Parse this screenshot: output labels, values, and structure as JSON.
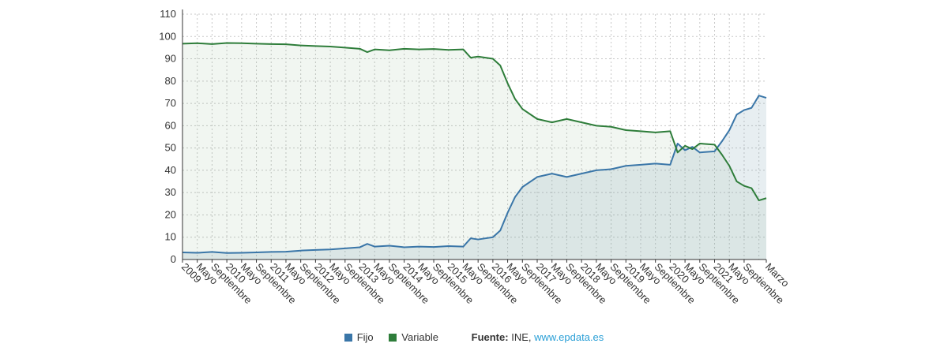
{
  "chart_data": {
    "type": "area",
    "y_ticks": [
      "0",
      "10",
      "20",
      "30",
      "40",
      "50",
      "60",
      "70",
      "80",
      "90",
      "100",
      "110"
    ],
    "ylim": [
      0,
      110
    ],
    "grid": true,
    "x_labels": [
      "2009",
      "Mayo",
      "Septiembre",
      "2010",
      "Mayo",
      "Septiembre",
      "2011",
      "Mayo",
      "Septiembre",
      "2012",
      "Mayo",
      "Septiembre",
      "2013",
      "Mayo",
      "Septiembre",
      "2014",
      "Mayo",
      "Septiembre",
      "2015",
      "Mayo",
      "Septiembre",
      "2016",
      "Mayo",
      "Septiembre",
      "2017",
      "Mayo",
      "Septiembre",
      "2018",
      "Mayo",
      "Septiembre",
      "2019",
      "Mayo",
      "Septiembre",
      "2020",
      "Mayo",
      "Septiembre",
      "2021",
      "Mayo",
      "Septiembre",
      "Marzo"
    ],
    "x_positions": [
      0,
      4,
      8,
      12,
      16,
      20,
      24,
      28,
      32,
      36,
      40,
      44,
      48,
      52,
      56,
      60,
      64,
      68,
      72,
      76,
      80,
      84,
      88,
      92,
      96,
      100,
      104,
      108,
      112,
      116,
      120,
      124,
      128,
      132,
      136,
      140,
      144,
      148,
      152,
      158
    ],
    "x_max": 158,
    "series": [
      {
        "name": "Fijo",
        "color": "#3a76a8",
        "values": [
          [
            0,
            3.2
          ],
          [
            4,
            3.0
          ],
          [
            8,
            3.4
          ],
          [
            12,
            2.9
          ],
          [
            16,
            3.0
          ],
          [
            20,
            3.2
          ],
          [
            24,
            3.4
          ],
          [
            28,
            3.5
          ],
          [
            32,
            4.0
          ],
          [
            36,
            4.3
          ],
          [
            40,
            4.5
          ],
          [
            44,
            5.0
          ],
          [
            48,
            5.5
          ],
          [
            50,
            7.0
          ],
          [
            52,
            5.8
          ],
          [
            56,
            6.2
          ],
          [
            60,
            5.5
          ],
          [
            64,
            5.8
          ],
          [
            68,
            5.6
          ],
          [
            72,
            6.0
          ],
          [
            76,
            5.8
          ],
          [
            78,
            9.5
          ],
          [
            80,
            9.0
          ],
          [
            84,
            10.0
          ],
          [
            86,
            13.0
          ],
          [
            88,
            21.0
          ],
          [
            90,
            28.0
          ],
          [
            92,
            32.5
          ],
          [
            96,
            37.0
          ],
          [
            100,
            38.5
          ],
          [
            104,
            37.0
          ],
          [
            108,
            38.5
          ],
          [
            112,
            40.0
          ],
          [
            116,
            40.5
          ],
          [
            120,
            42.0
          ],
          [
            124,
            42.5
          ],
          [
            128,
            43.0
          ],
          [
            132,
            42.5
          ],
          [
            134,
            52.0
          ],
          [
            136,
            49.0
          ],
          [
            138,
            50.5
          ],
          [
            140,
            48.0
          ],
          [
            144,
            48.5
          ],
          [
            146,
            53.0
          ],
          [
            148,
            58.0
          ],
          [
            150,
            65.0
          ],
          [
            152,
            67.0
          ],
          [
            154,
            68.0
          ],
          [
            156,
            73.5
          ],
          [
            158,
            72.5
          ]
        ]
      },
      {
        "name": "Variable",
        "color": "#2e7d3a",
        "values": [
          [
            0,
            96.8
          ],
          [
            4,
            97.0
          ],
          [
            8,
            96.6
          ],
          [
            12,
            97.1
          ],
          [
            16,
            97.0
          ],
          [
            20,
            96.8
          ],
          [
            24,
            96.6
          ],
          [
            28,
            96.5
          ],
          [
            32,
            96.0
          ],
          [
            36,
            95.7
          ],
          [
            40,
            95.5
          ],
          [
            44,
            95.0
          ],
          [
            48,
            94.5
          ],
          [
            50,
            93.0
          ],
          [
            52,
            94.2
          ],
          [
            56,
            93.8
          ],
          [
            60,
            94.5
          ],
          [
            64,
            94.2
          ],
          [
            68,
            94.4
          ],
          [
            72,
            94.0
          ],
          [
            76,
            94.2
          ],
          [
            78,
            90.5
          ],
          [
            80,
            91.0
          ],
          [
            84,
            90.0
          ],
          [
            86,
            87.0
          ],
          [
            88,
            79.0
          ],
          [
            90,
            72.0
          ],
          [
            92,
            67.5
          ],
          [
            96,
            63.0
          ],
          [
            100,
            61.5
          ],
          [
            104,
            63.0
          ],
          [
            108,
            61.5
          ],
          [
            112,
            60.0
          ],
          [
            116,
            59.5
          ],
          [
            120,
            58.0
          ],
          [
            124,
            57.5
          ],
          [
            128,
            57.0
          ],
          [
            132,
            57.5
          ],
          [
            134,
            48.0
          ],
          [
            136,
            51.0
          ],
          [
            138,
            49.5
          ],
          [
            140,
            52.0
          ],
          [
            144,
            51.5
          ],
          [
            146,
            47.0
          ],
          [
            148,
            42.0
          ],
          [
            150,
            35.0
          ],
          [
            152,
            33.0
          ],
          [
            154,
            32.0
          ],
          [
            156,
            26.5
          ],
          [
            158,
            27.5
          ]
        ]
      }
    ]
  },
  "legend": {
    "fijo_label": "Fijo",
    "variable_label": "Variable",
    "source_label": "Fuente:",
    "source_text": "INE,",
    "source_link": "www.epdata.es"
  }
}
